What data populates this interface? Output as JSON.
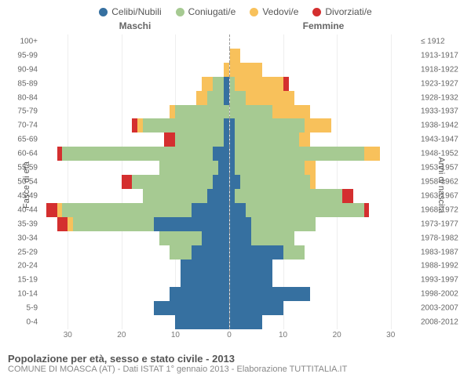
{
  "legend": [
    {
      "label": "Celibi/Nubili",
      "color": "#3670a0"
    },
    {
      "label": "Coniugati/e",
      "color": "#a6ca92"
    },
    {
      "label": "Vedovi/e",
      "color": "#f8c15b"
    },
    {
      "label": "Divorziati/e",
      "color": "#d42f2f"
    }
  ],
  "headers": {
    "male": "Maschi",
    "female": "Femmine"
  },
  "axis_labels": {
    "left": "Fasce di età",
    "right": "Anni di nascita"
  },
  "x_max": 35,
  "x_ticks": [
    30,
    20,
    10,
    0,
    10,
    20,
    30
  ],
  "colors": {
    "single": "#3670a0",
    "married": "#a6ca92",
    "widowed": "#f8c15b",
    "divorced": "#d42f2f",
    "grid": "#eeeeee",
    "center": "#999999"
  },
  "rows": [
    {
      "age": "100+",
      "birth": "≤ 1912",
      "m": [
        0,
        0,
        0,
        0
      ],
      "f": [
        0,
        0,
        0,
        0
      ]
    },
    {
      "age": "95-99",
      "birth": "1913-1917",
      "m": [
        0,
        0,
        0,
        0
      ],
      "f": [
        0,
        0,
        2,
        0
      ]
    },
    {
      "age": "90-94",
      "birth": "1918-1922",
      "m": [
        0,
        0,
        1,
        0
      ],
      "f": [
        0,
        0,
        6,
        0
      ]
    },
    {
      "age": "85-89",
      "birth": "1923-1927",
      "m": [
        1,
        2,
        2,
        0
      ],
      "f": [
        0,
        1,
        9,
        1
      ]
    },
    {
      "age": "80-84",
      "birth": "1928-1932",
      "m": [
        1,
        3,
        2,
        0
      ],
      "f": [
        0,
        3,
        9,
        0
      ]
    },
    {
      "age": "75-79",
      "birth": "1933-1937",
      "m": [
        0,
        10,
        1,
        0
      ],
      "f": [
        0,
        8,
        7,
        0
      ]
    },
    {
      "age": "70-74",
      "birth": "1938-1942",
      "m": [
        1,
        15,
        1,
        1
      ],
      "f": [
        1,
        13,
        5,
        0
      ]
    },
    {
      "age": "65-69",
      "birth": "1943-1947",
      "m": [
        1,
        9,
        0,
        2
      ],
      "f": [
        1,
        12,
        2,
        0
      ]
    },
    {
      "age": "60-64",
      "birth": "1948-1952",
      "m": [
        3,
        28,
        0,
        1
      ],
      "f": [
        1,
        24,
        3,
        0
      ]
    },
    {
      "age": "55-59",
      "birth": "1953-1957",
      "m": [
        2,
        11,
        0,
        0
      ],
      "f": [
        1,
        13,
        2,
        0
      ]
    },
    {
      "age": "50-54",
      "birth": "1958-1962",
      "m": [
        3,
        15,
        0,
        2
      ],
      "f": [
        2,
        13,
        1,
        0
      ]
    },
    {
      "age": "45-49",
      "birth": "1963-1967",
      "m": [
        4,
        12,
        0,
        0
      ],
      "f": [
        1,
        20,
        0,
        2
      ]
    },
    {
      "age": "40-44",
      "birth": "1968-1972",
      "m": [
        7,
        24,
        1,
        2
      ],
      "f": [
        3,
        22,
        0,
        1
      ]
    },
    {
      "age": "35-39",
      "birth": "1973-1977",
      "m": [
        14,
        15,
        1,
        2
      ],
      "f": [
        4,
        12,
        0,
        0
      ]
    },
    {
      "age": "30-34",
      "birth": "1978-1982",
      "m": [
        5,
        8,
        0,
        0
      ],
      "f": [
        4,
        8,
        0,
        0
      ]
    },
    {
      "age": "25-29",
      "birth": "1983-1987",
      "m": [
        7,
        4,
        0,
        0
      ],
      "f": [
        10,
        4,
        0,
        0
      ]
    },
    {
      "age": "20-24",
      "birth": "1988-1992",
      "m": [
        9,
        0,
        0,
        0
      ],
      "f": [
        8,
        0,
        0,
        0
      ]
    },
    {
      "age": "15-19",
      "birth": "1993-1997",
      "m": [
        9,
        0,
        0,
        0
      ],
      "f": [
        8,
        0,
        0,
        0
      ]
    },
    {
      "age": "10-14",
      "birth": "1998-2002",
      "m": [
        11,
        0,
        0,
        0
      ],
      "f": [
        15,
        0,
        0,
        0
      ]
    },
    {
      "age": "5-9",
      "birth": "2003-2007",
      "m": [
        14,
        0,
        0,
        0
      ],
      "f": [
        10,
        0,
        0,
        0
      ]
    },
    {
      "age": "0-4",
      "birth": "2008-2012",
      "m": [
        10,
        0,
        0,
        0
      ],
      "f": [
        6,
        0,
        0,
        0
      ]
    }
  ],
  "footer": {
    "title": "Popolazione per età, sesso e stato civile - 2013",
    "sub": "COMUNE DI MOASCA (AT) - Dati ISTAT 1° gennaio 2013 - Elaborazione TUTTITALIA.IT"
  }
}
